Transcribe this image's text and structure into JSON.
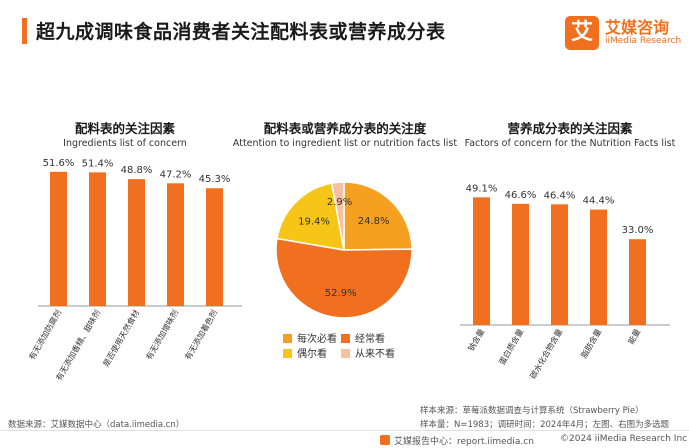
{
  "page_title": "超九成调味食品消费者关注配料表或营养成分表",
  "logo": {
    "mark": "艾",
    "name_cn": "艾媒咨询",
    "name_en": "iiMedia Research"
  },
  "colors": {
    "accent": "#f07020",
    "pie": [
      "#f5a020",
      "#f07020",
      "#f5c518",
      "#f7c0a0"
    ]
  },
  "chart_data": [
    {
      "type": "bar",
      "title": "配料表的关注因素",
      "subtitle": "Ingredients list of concern",
      "categories": [
        "有无添加防腐剂",
        "有无添加香精、甜味剂",
        "是否使用天然食材",
        "有无添加增味剂",
        "有无添加着色剂"
      ],
      "values": [
        51.6,
        51.4,
        48.8,
        47.2,
        45.3
      ],
      "value_labels": [
        "51.6%",
        "51.4%",
        "48.8%",
        "47.2%",
        "45.3%"
      ],
      "ylim": [
        0,
        60
      ]
    },
    {
      "type": "pie",
      "title": "配料表或营养成分表的关注度",
      "subtitle": "Attention to ingredient list or nutrition facts list",
      "categories": [
        "每次必看",
        "经常看",
        "偶尔看",
        "从来不看"
      ],
      "values": [
        24.8,
        52.9,
        19.4,
        2.9
      ],
      "value_labels": [
        "24.8%",
        "52.9%",
        "19.4%",
        "2.9%"
      ]
    },
    {
      "type": "bar",
      "title": "营养成分表的关注因素",
      "subtitle": "Factors of concern for the Nutrition Facts list",
      "categories": [
        "钠含量",
        "蛋白质含量",
        "碳水化合物含量",
        "脂肪含量",
        "能量"
      ],
      "values": [
        49.1,
        46.6,
        46.4,
        44.4,
        33.0
      ],
      "value_labels": [
        "49.1%",
        "46.6%",
        "46.4%",
        "44.4%",
        "33.0%"
      ],
      "ylim": [
        0,
        60
      ]
    }
  ],
  "notes": {
    "source_line1": "样本来源：草莓派数据调查与计算系统（Strawberry Pie）",
    "source_line2": "样本量：N=1983；调研时间：2024年4月；左图、右图为多选题",
    "data_source": "数据来源：艾媒数据中心（data.iimedia.cn）"
  },
  "footer": {
    "report": "艾媒报告中心：report.iimedia.cn",
    "copyright": "©2024  iiMedia Research Inc"
  }
}
